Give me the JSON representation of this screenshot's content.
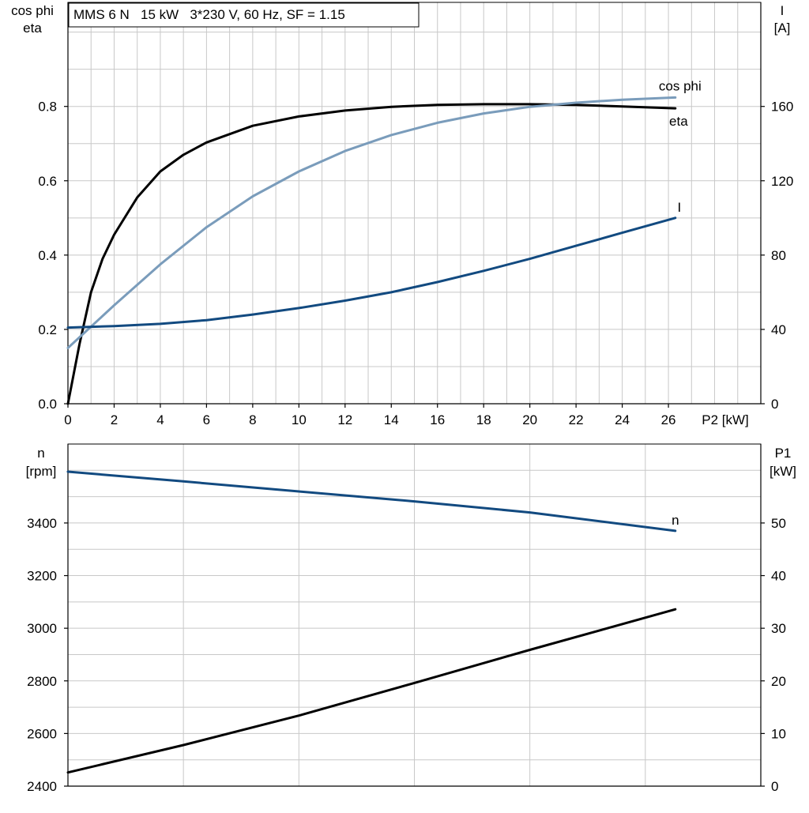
{
  "colors": {
    "eta": "#000000",
    "cos_phi": "#7a9cbb",
    "current": "#124a80",
    "speed": "#124a80",
    "p1": "#000000",
    "grid": "#c8c8c8"
  },
  "chart_data": [
    {
      "type": "line",
      "title": "MMS 6 N   15 kW   3*230 V, 60 Hz, SF = 1.15",
      "xlabel": "P2 [kW]",
      "ylabel_left": [
        "cos phi",
        "eta"
      ],
      "ylabel_right": [
        "I",
        "[A]"
      ],
      "xlim": [
        0,
        30
      ],
      "ylim_left": [
        0,
        1.08
      ],
      "ylim_right": [
        0,
        216
      ],
      "x_ticks": [
        "0",
        "2",
        "4",
        "6",
        "8",
        "10",
        "12",
        "14",
        "16",
        "18",
        "20",
        "22",
        "24",
        "26"
      ],
      "y_left_ticks": [
        "0.0",
        "0.2",
        "0.4",
        "0.6",
        "0.8"
      ],
      "y_right_ticks": [
        "0",
        "40",
        "80",
        "120",
        "160"
      ],
      "grid": true,
      "series": [
        {
          "name": "eta",
          "axis": "left",
          "color": "#000000",
          "x": [
            0,
            0.5,
            1,
            1.5,
            2,
            3,
            4,
            5,
            6,
            8,
            10,
            12,
            14,
            16,
            18,
            20,
            22,
            24,
            26.3
          ],
          "y": [
            0,
            0.16,
            0.3,
            0.39,
            0.455,
            0.555,
            0.625,
            0.67,
            0.703,
            0.748,
            0.773,
            0.789,
            0.799,
            0.804,
            0.806,
            0.806,
            0.804,
            0.8,
            0.795
          ]
        },
        {
          "name": "cos phi",
          "axis": "left",
          "color": "#7a9cbb",
          "x": [
            0,
            2,
            4,
            6,
            8,
            10,
            12,
            14,
            16,
            18,
            20,
            22,
            24,
            26.3
          ],
          "y": [
            0.15,
            0.265,
            0.375,
            0.475,
            0.558,
            0.625,
            0.68,
            0.723,
            0.756,
            0.781,
            0.799,
            0.81,
            0.818,
            0.824
          ]
        },
        {
          "name": "I",
          "axis": "right",
          "color": "#124a80",
          "x": [
            0,
            2,
            4,
            6,
            8,
            10,
            12,
            14,
            16,
            18,
            20,
            22,
            24,
            26.3
          ],
          "y": [
            41,
            41.8,
            43,
            45,
            48,
            51.5,
            55.5,
            60,
            65.5,
            71.5,
            78,
            85,
            92,
            100
          ]
        }
      ]
    },
    {
      "type": "line",
      "xlabel": "",
      "ylabel_left": [
        "n",
        "[rpm]"
      ],
      "ylabel_right": [
        "P1",
        "[kW]"
      ],
      "xlim": [
        0,
        30
      ],
      "ylim_left": [
        2400,
        3700
      ],
      "ylim_right": [
        0,
        65
      ],
      "y_left_ticks": [
        "2400",
        "2600",
        "2800",
        "3000",
        "3200",
        "3400"
      ],
      "y_right_ticks": [
        "0",
        "10",
        "20",
        "30",
        "40",
        "50"
      ],
      "grid": true,
      "series": [
        {
          "name": "n",
          "axis": "left",
          "color": "#124a80",
          "x": [
            0,
            5,
            10,
            15,
            20,
            26.3
          ],
          "y": [
            3595,
            3558,
            3520,
            3482,
            3440,
            3370
          ]
        },
        {
          "name": "",
          "axis": "right",
          "color": "#000000",
          "x": [
            0,
            5,
            10,
            15,
            20,
            26.3
          ],
          "y": [
            2.6,
            7.8,
            13.4,
            19.6,
            25.9,
            33.6
          ]
        }
      ]
    }
  ]
}
